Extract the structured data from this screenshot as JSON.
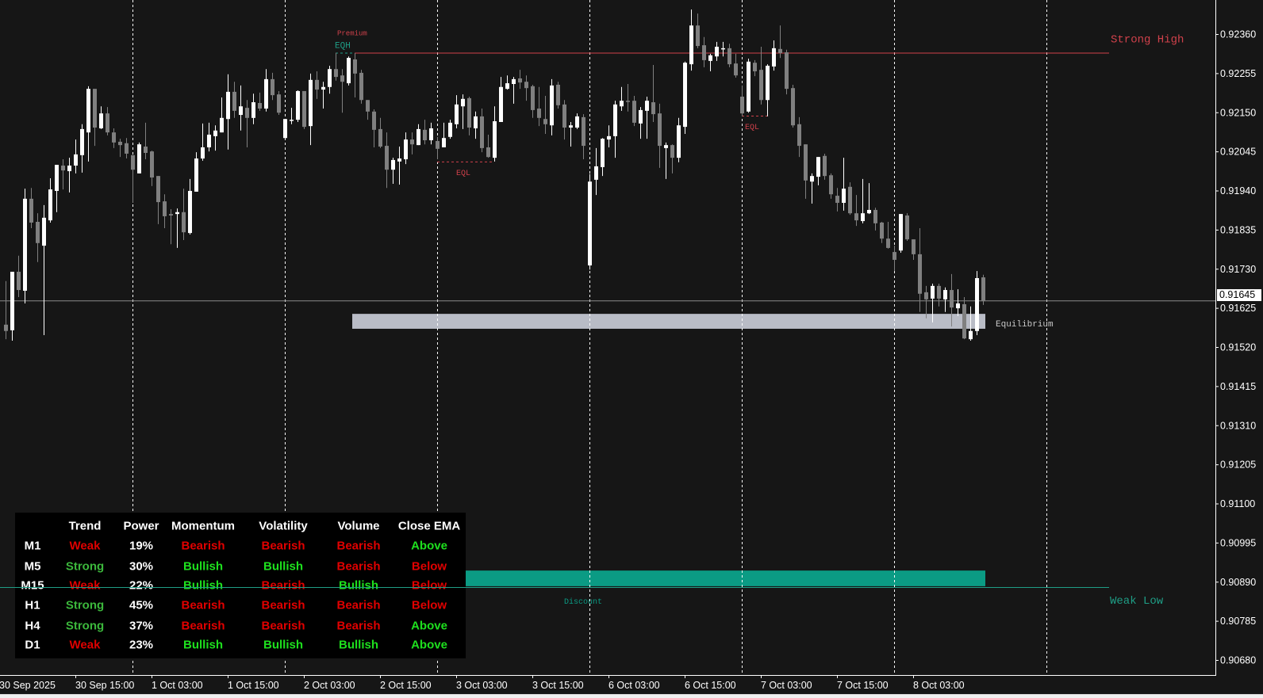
{
  "chart_data": {
    "type": "candlestick",
    "ylim": [
      0.9064,
      0.92451
    ],
    "y_ticks": [
      "0.92360",
      "0.92255",
      "0.92150",
      "0.92045",
      "0.91940",
      "0.91835",
      "0.91730",
      "0.91625",
      "0.91520",
      "0.91415",
      "0.91310",
      "0.91205",
      "0.91100",
      "0.90995",
      "0.90890",
      "0.90785",
      "0.90680"
    ],
    "x_ticks": [
      {
        "label": "30 Sep 2025",
        "bar": -1
      },
      {
        "label": "30 Sep 15:00",
        "bar": 11
      },
      {
        "label": "1 Oct 03:00",
        "bar": 23
      },
      {
        "label": "1 Oct 15:00",
        "bar": 35
      },
      {
        "label": "2 Oct 03:00",
        "bar": 47
      },
      {
        "label": "2 Oct 15:00",
        "bar": 59
      },
      {
        "label": "3 Oct 03:00",
        "bar": 71
      },
      {
        "label": "3 Oct 15:00",
        "bar": 83
      },
      {
        "label": "6 Oct 03:00",
        "bar": 95
      },
      {
        "label": "6 Oct 15:00",
        "bar": 107
      },
      {
        "label": "7 Oct 03:00",
        "bar": 119
      },
      {
        "label": "7 Oct 15:00",
        "bar": 131
      },
      {
        "label": "8 Oct 03:00",
        "bar": 143
      }
    ],
    "period_separators": [
      20,
      44,
      68,
      92,
      116,
      140,
      164
    ],
    "current_price": "0.91645",
    "candle_fields": [
      "open",
      "high",
      "low",
      "close"
    ],
    "candles": [
      [
        0.9158,
        0.91697,
        0.91541,
        0.91563
      ],
      [
        0.91565,
        0.91722,
        0.91537,
        0.91722
      ],
      [
        0.91722,
        0.91765,
        0.91654,
        0.91673
      ],
      [
        0.91671,
        0.91945,
        0.91637,
        0.91918
      ],
      [
        0.91918,
        0.91947,
        0.91839,
        0.91854
      ],
      [
        0.91856,
        0.91879,
        0.91748,
        0.91799
      ],
      [
        0.91792,
        0.91901,
        0.91552,
        0.91867
      ],
      [
        0.9186,
        0.91973,
        0.91854,
        0.91943
      ],
      [
        0.91939,
        0.92009,
        0.91882,
        0.92009
      ],
      [
        0.92007,
        0.92024,
        0.91943,
        0.91994
      ],
      [
        0.91992,
        0.92028,
        0.91935,
        0.92007
      ],
      [
        0.92007,
        0.92077,
        0.91986,
        0.92037
      ],
      [
        0.92035,
        0.92118,
        0.91988,
        0.92105
      ],
      [
        0.92096,
        0.9222,
        0.92018,
        0.92213
      ],
      [
        0.92213,
        0.92213,
        0.9206,
        0.92109
      ],
      [
        0.92107,
        0.92166,
        0.92105,
        0.92147
      ],
      [
        0.92147,
        0.92164,
        0.92088,
        0.92096
      ],
      [
        0.92096,
        0.92107,
        0.92054,
        0.92069
      ],
      [
        0.92071,
        0.92079,
        0.9203,
        0.92062
      ],
      [
        0.92067,
        0.92081,
        0.92026,
        0.92039
      ],
      [
        0.92035,
        0.92035,
        0.91907,
        0.91996
      ],
      [
        0.91986,
        0.92069,
        0.91986,
        0.92064
      ],
      [
        0.92058,
        0.92122,
        0.92024,
        0.92041
      ],
      [
        0.92045,
        0.92047,
        0.91952,
        0.91975
      ],
      [
        0.91979,
        0.91979,
        0.9185,
        0.91909
      ],
      [
        0.91911,
        0.9193,
        0.91839,
        0.91871
      ],
      [
        0.91877,
        0.9189,
        0.91796,
        0.91873
      ],
      [
        0.91877,
        0.91892,
        0.91786,
        0.91882
      ],
      [
        0.91882,
        0.91945,
        0.91807,
        0.91828
      ],
      [
        0.91826,
        0.91971,
        0.91822,
        0.91939
      ],
      [
        0.91937,
        0.92043,
        0.91937,
        0.92026
      ],
      [
        0.92026,
        0.9212,
        0.9202,
        0.92056
      ],
      [
        0.92056,
        0.92122,
        0.92045,
        0.9209
      ],
      [
        0.92086,
        0.92115,
        0.92047,
        0.92101
      ],
      [
        0.92096,
        0.9219,
        0.92096,
        0.92135
      ],
      [
        0.92132,
        0.92252,
        0.9205,
        0.92205
      ],
      [
        0.92205,
        0.92232,
        0.92135,
        0.92154
      ],
      [
        0.92143,
        0.92222,
        0.92101,
        0.92166
      ],
      [
        0.92162,
        0.92183,
        0.92056,
        0.92135
      ],
      [
        0.92135,
        0.922,
        0.92118,
        0.92177
      ],
      [
        0.92175,
        0.92203,
        0.92154,
        0.9216
      ],
      [
        0.9216,
        0.92266,
        0.92152,
        0.92239
      ],
      [
        0.92239,
        0.92256,
        0.92183,
        0.92196
      ],
      [
        0.92198,
        0.92207,
        0.92143,
        0.92149
      ],
      [
        0.92081,
        0.92132,
        0.92081,
        0.92132
      ],
      [
        0.9213,
        0.92162,
        0.92118,
        0.9213
      ],
      [
        0.9213,
        0.92209,
        0.92124,
        0.92207
      ],
      [
        0.92207,
        0.92207,
        0.92105,
        0.92111
      ],
      [
        0.92113,
        0.92254,
        0.92062,
        0.92237
      ],
      [
        0.92237,
        0.9226,
        0.92186,
        0.92211
      ],
      [
        0.92211,
        0.92232,
        0.9216,
        0.92218
      ],
      [
        0.92218,
        0.92275,
        0.922,
        0.92266
      ],
      [
        0.92266,
        0.92309,
        0.92235,
        0.92245
      ],
      [
        0.92249,
        0.92266,
        0.92149,
        0.92232
      ],
      [
        0.92228,
        0.923,
        0.92222,
        0.92296
      ],
      [
        0.92292,
        0.92309,
        0.9219,
        0.92254
      ],
      [
        0.92256,
        0.92264,
        0.92173,
        0.92183
      ],
      [
        0.92183,
        0.92183,
        0.9213,
        0.92152
      ],
      [
        0.92152,
        0.92158,
        0.92056,
        0.92103
      ],
      [
        0.92105,
        0.92135,
        0.92054,
        0.92058
      ],
      [
        0.9206,
        0.92096,
        0.91947,
        0.91996
      ],
      [
        0.91996,
        0.92028,
        0.91958,
        0.92022
      ],
      [
        0.92018,
        0.92058,
        0.91956,
        0.92026
      ],
      [
        0.92024,
        0.92096,
        0.92011,
        0.92077
      ],
      [
        0.92077,
        0.92096,
        0.92037,
        0.92064
      ],
      [
        0.92062,
        0.92118,
        0.92062,
        0.92105
      ],
      [
        0.92103,
        0.9213,
        0.92064,
        0.92075
      ],
      [
        0.92075,
        0.92122,
        0.92064,
        0.92107
      ],
      [
        0.92073,
        0.92084,
        0.92024,
        0.92052
      ],
      [
        0.92056,
        0.92122,
        0.92056,
        0.92081
      ],
      [
        0.92084,
        0.9213,
        0.92079,
        0.92122
      ],
      [
        0.92118,
        0.92196,
        0.92107,
        0.92171
      ],
      [
        0.92166,
        0.92198,
        0.92105,
        0.92186
      ],
      [
        0.92188,
        0.92192,
        0.92088,
        0.92109
      ],
      [
        0.92107,
        0.92152,
        0.92079,
        0.92139
      ],
      [
        0.92139,
        0.9216,
        0.92043,
        0.92054
      ],
      [
        0.92056,
        0.9209,
        0.92028,
        0.9203
      ],
      [
        0.92028,
        0.92166,
        0.92018,
        0.92126
      ],
      [
        0.92124,
        0.92245,
        0.92124,
        0.92218
      ],
      [
        0.92213,
        0.92249,
        0.92211,
        0.92228
      ],
      [
        0.92226,
        0.92245,
        0.92173,
        0.92239
      ],
      [
        0.92241,
        0.92264,
        0.92213,
        0.9223
      ],
      [
        0.92232,
        0.92249,
        0.92181,
        0.92215
      ],
      [
        0.9222,
        0.92224,
        0.92135,
        0.92156
      ],
      [
        0.9216,
        0.92218,
        0.92113,
        0.92135
      ],
      [
        0.92132,
        0.92194,
        0.92092,
        0.92118
      ],
      [
        0.92115,
        0.92239,
        0.92088,
        0.92222
      ],
      [
        0.92224,
        0.92232,
        0.9216,
        0.92169
      ],
      [
        0.92171,
        0.92183,
        0.92077,
        0.92109
      ],
      [
        0.92109,
        0.92124,
        0.92058,
        0.92115
      ],
      [
        0.92109,
        0.92147,
        0.92105,
        0.92139
      ],
      [
        0.92137,
        0.92145,
        0.92024,
        0.9206
      ],
      [
        0.91739,
        0.91984,
        0.91728,
        0.91964
      ],
      [
        0.91969,
        0.92054,
        0.91928,
        0.92005
      ],
      [
        0.92003,
        0.92081,
        0.91979,
        0.92079
      ],
      [
        0.92077,
        0.92115,
        0.92056,
        0.92086
      ],
      [
        0.92086,
        0.92181,
        0.92028,
        0.92171
      ],
      [
        0.92166,
        0.92218,
        0.92154,
        0.92181
      ],
      [
        0.92181,
        0.92226,
        0.92152,
        0.92179
      ],
      [
        0.92181,
        0.92194,
        0.92113,
        0.92122
      ],
      [
        0.9212,
        0.92164,
        0.92079,
        0.92156
      ],
      [
        0.92154,
        0.92192,
        0.92079,
        0.92181
      ],
      [
        0.92177,
        0.92277,
        0.92124,
        0.92145
      ],
      [
        0.92147,
        0.92173,
        0.92001,
        0.9206
      ],
      [
        0.92054,
        0.92069,
        0.91971,
        0.92062
      ],
      [
        0.92062,
        0.92064,
        0.91986,
        0.92028
      ],
      [
        0.92028,
        0.92135,
        0.92016,
        0.92115
      ],
      [
        0.92111,
        0.92286,
        0.92092,
        0.92283
      ],
      [
        0.92279,
        0.92426,
        0.92262,
        0.92383
      ],
      [
        0.92383,
        0.92415,
        0.92322,
        0.92328
      ],
      [
        0.9233,
        0.92352,
        0.92271,
        0.9229
      ],
      [
        0.92288,
        0.92307,
        0.9226,
        0.92303
      ],
      [
        0.923,
        0.92339,
        0.92288,
        0.92326
      ],
      [
        0.92322,
        0.92339,
        0.923,
        0.92322
      ],
      [
        0.92322,
        0.92334,
        0.92271,
        0.92279
      ],
      [
        0.92281,
        0.92307,
        0.92243,
        0.92249
      ],
      [
        0.92192,
        0.92222,
        0.92139,
        0.92147
      ],
      [
        0.92152,
        0.92294,
        0.92149,
        0.92286
      ],
      [
        0.92283,
        0.9229,
        0.92247,
        0.9226
      ],
      [
        0.92264,
        0.92326,
        0.92171,
        0.92183
      ],
      [
        0.92183,
        0.92279,
        0.92139,
        0.92275
      ],
      [
        0.92273,
        0.92343,
        0.92262,
        0.92322
      ],
      [
        0.9232,
        0.92383,
        0.92296,
        0.92309
      ],
      [
        0.92311,
        0.92318,
        0.92198,
        0.92213
      ],
      [
        0.92215,
        0.92224,
        0.92109,
        0.92115
      ],
      [
        0.92118,
        0.92137,
        0.9203,
        0.9206
      ],
      [
        0.92064,
        0.92064,
        0.91918,
        0.91967
      ],
      [
        0.91964,
        0.91986,
        0.91905,
        0.91979
      ],
      [
        0.91977,
        0.9203,
        0.91954,
        0.9203
      ],
      [
        0.92033,
        0.92039,
        0.91969,
        0.91979
      ],
      [
        0.91981,
        0.91986,
        0.91918,
        0.9193
      ],
      [
        0.91926,
        0.91947,
        0.91884,
        0.91907
      ],
      [
        0.91907,
        0.92028,
        0.91886,
        0.91945
      ],
      [
        0.9195,
        0.91962,
        0.91875,
        0.91879
      ],
      [
        0.91879,
        0.91928,
        0.91845,
        0.9186
      ],
      [
        0.91858,
        0.91971,
        0.91852,
        0.91879
      ],
      [
        0.91879,
        0.9196,
        0.91877,
        0.91888
      ],
      [
        0.91888,
        0.91894,
        0.91833,
        0.91852
      ],
      [
        0.91854,
        0.91856,
        0.91799,
        0.91811
      ],
      [
        0.91811,
        0.91856,
        0.91784,
        0.91786
      ],
      [
        0.91775,
        0.91792,
        0.91724,
        0.91754
      ],
      [
        0.91779,
        0.91877,
        0.91773,
        0.91877
      ],
      [
        0.91873,
        0.91879,
        0.91805,
        0.91809
      ],
      [
        0.91809,
        0.91809,
        0.91754,
        0.91769
      ],
      [
        0.91769,
        0.91839,
        0.91614,
        0.91663
      ],
      [
        0.91667,
        0.91684,
        0.91597,
        0.91648
      ],
      [
        0.9165,
        0.9169,
        0.91586,
        0.91684
      ],
      [
        0.91684,
        0.9169,
        0.91629,
        0.9165
      ],
      [
        0.91648,
        0.9168,
        0.91614,
        0.91673
      ],
      [
        0.91673,
        0.91716,
        0.91575,
        0.91626
      ],
      [
        0.91624,
        0.91675,
        0.91603,
        0.91637
      ],
      [
        0.91635,
        0.91654,
        0.91541,
        0.91543
      ],
      [
        0.91541,
        0.91629,
        0.91537,
        0.91563
      ],
      [
        0.91563,
        0.91724,
        0.91552,
        0.91705
      ],
      [
        0.91707,
        0.91714,
        0.91633,
        0.91643
      ]
    ],
    "levels": {
      "strong_high": {
        "label": "Strong High",
        "price": 0.9231,
        "from_bar": 55
      },
      "weak_low": {
        "label": "Weak Low",
        "price": 0.90876
      },
      "eqh": {
        "label": "EQH",
        "price": 0.9231,
        "from_bar": 52,
        "to_bar": 55
      },
      "premium": {
        "label": "Premium"
      },
      "eql": [
        {
          "label": "EQL",
          "price": 0.92018,
          "from_bar": 68,
          "to_bar": 77
        },
        {
          "label": "EQL",
          "price": 0.92141,
          "from_bar": 116,
          "to_bar": 120
        }
      ]
    },
    "zones": {
      "equilibrium": {
        "label": "Equilibrium",
        "top": 0.91609,
        "bottom": 0.91569,
        "from_bar": 55,
        "to_bar": 154
      },
      "discount": {
        "label": "Discount",
        "top": 0.9092,
        "bottom": 0.90878,
        "from_bar": 55,
        "to_bar": 154
      }
    },
    "colors": {
      "background": "#161616",
      "bull": "#ffffff",
      "bear": "#808080",
      "grid": "#ffffff",
      "strong_high": "#d0414b",
      "weak_low": "#1f9e86",
      "equilibrium_zone": "#b9bcc6",
      "discount_zone": "#0b9b84",
      "eqh": "#1f9e86",
      "eql": "#d0414b",
      "current_price_line": "#8a8a8a"
    }
  },
  "dashboard": {
    "headers": [
      "",
      "Trend",
      "Power",
      "Momentum",
      "Volatility",
      "Volume",
      "Close EMA"
    ],
    "rows": [
      [
        "M1",
        "Weak",
        "19%",
        "Bearish",
        "Bearish",
        "Bearish",
        "Above"
      ],
      [
        "M5",
        "Strong",
        "30%",
        "Bullish",
        "Bullish",
        "Bearish",
        "Below"
      ],
      [
        "M15",
        "Weak",
        "22%",
        "Bullish",
        "Bearish",
        "Bullish",
        "Below"
      ],
      [
        "H1",
        "Strong",
        "45%",
        "Bearish",
        "Bearish",
        "Bearish",
        "Below"
      ],
      [
        "H4",
        "Strong",
        "37%",
        "Bearish",
        "Bearish",
        "Bearish",
        "Above"
      ],
      [
        "D1",
        "Weak",
        "23%",
        "Bullish",
        "Bullish",
        "Bullish",
        "Above"
      ]
    ],
    "colors": {
      "Weak": "#e00000",
      "Bearish": "#e00000",
      "Below": "#e00000",
      "Strong": "#3cb83c",
      "Bullish": "#1ee01e",
      "Above": "#1ee01e",
      "default": "#ffffff"
    }
  }
}
